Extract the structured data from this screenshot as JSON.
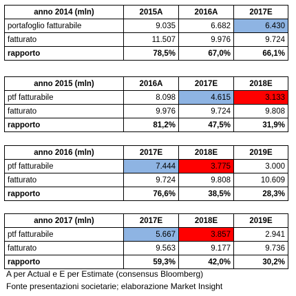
{
  "colors": {
    "blue_highlight": "#8eb4e3",
    "red_highlight": "#ff0000"
  },
  "tables": [
    {
      "title": "anno 2014 (mln)",
      "columns": [
        "2015A",
        "2016A",
        "2017E"
      ],
      "rows": [
        {
          "label": "portafoglio fatturabile",
          "values": [
            "9.035",
            "6.682",
            "6.430"
          ],
          "highlight": [
            null,
            null,
            "blue"
          ]
        },
        {
          "label": "fatturato",
          "values": [
            "11.507",
            "9.976",
            "9.724"
          ],
          "highlight": [
            null,
            null,
            null
          ]
        },
        {
          "label": "rapporto",
          "values": [
            "78,5%",
            "67,0%",
            "66,1%"
          ],
          "highlight": [
            null,
            null,
            null
          ]
        }
      ]
    },
    {
      "title": "anno 2015 (mln)",
      "columns": [
        "2016A",
        "2017E",
        "2018E"
      ],
      "rows": [
        {
          "label": "ptf fatturabile",
          "values": [
            "8.098",
            "4.615",
            "3.133"
          ],
          "highlight": [
            null,
            "blue",
            "red"
          ]
        },
        {
          "label": "fatturato",
          "values": [
            "9.976",
            "9.724",
            "9.808"
          ],
          "highlight": [
            null,
            null,
            null
          ]
        },
        {
          "label": "rapporto",
          "values": [
            "81,2%",
            "47,5%",
            "31,9%"
          ],
          "highlight": [
            null,
            null,
            null
          ]
        }
      ]
    },
    {
      "title": "anno 2016 (mln)",
      "columns": [
        "2017E",
        "2018E",
        "2019E"
      ],
      "rows": [
        {
          "label": "ptf fatturabile",
          "values": [
            "7.444",
            "3.775",
            "3.000"
          ],
          "highlight": [
            "blue",
            "red",
            null
          ]
        },
        {
          "label": "fatturato",
          "values": [
            "9.724",
            "9.808",
            "10.609"
          ],
          "highlight": [
            null,
            null,
            null
          ]
        },
        {
          "label": "rapporto",
          "values": [
            "76,6%",
            "38,5%",
            "28,3%"
          ],
          "highlight": [
            null,
            null,
            null
          ]
        }
      ]
    },
    {
      "title": "anno 2017 (mln)",
      "columns": [
        "2017E",
        "2018E",
        "2019E"
      ],
      "rows": [
        {
          "label": "ptf fatturabile",
          "values": [
            "5.667",
            "3.857",
            "2.941"
          ],
          "highlight": [
            "blue",
            "red",
            null
          ]
        },
        {
          "label": "fatturato",
          "values": [
            "9.563",
            "9.177",
            "9.736"
          ],
          "highlight": [
            null,
            null,
            null
          ]
        },
        {
          "label": "rapporto",
          "values": [
            "59,3%",
            "42,0%",
            "30,2%"
          ],
          "highlight": [
            null,
            null,
            null
          ]
        }
      ]
    }
  ],
  "footnote": {
    "line1": "A per Actual e E per Estimate (consensus Bloomberg)",
    "line2": "Fonte presentazioni societarie; elaborazione Market Insight"
  }
}
